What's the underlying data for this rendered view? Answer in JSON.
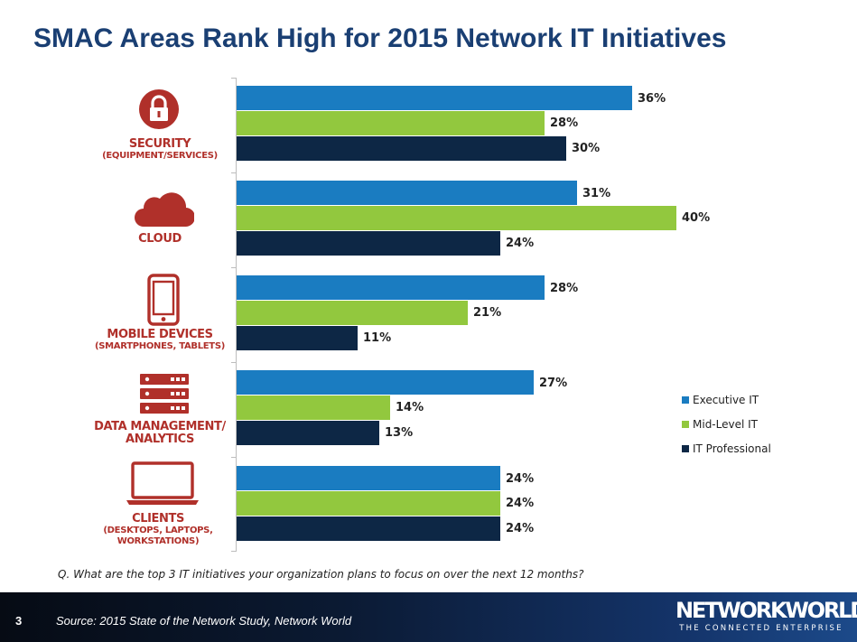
{
  "title": "SMAC Areas Rank High for 2015 Network IT Initiatives",
  "question": "Q. What are the top 3 IT initiatives your organization plans to focus on over the next 12 months?",
  "footer": {
    "page_number": "3",
    "source": "Source: 2015 State of the Network Study, Network World",
    "logo_main": "NETWORKWORLD",
    "logo_sub": "THE CONNECTED ENTERPRISE"
  },
  "colors": {
    "executive": "#1a7cc1",
    "midlevel": "#92c83e",
    "professional": "#0d2745",
    "icon": "#b0302a"
  },
  "chart_data": {
    "type": "bar",
    "orientation": "horizontal",
    "title": "SMAC Areas Rank High for 2015 Network IT Initiatives",
    "xlabel": "",
    "ylabel": "",
    "xlim": [
      0,
      40
    ],
    "grid": false,
    "legend_position": "right",
    "categories": [
      {
        "name": "SECURITY",
        "sub": "(EQUIPMENT/SERVICES)",
        "icon": "lock-icon"
      },
      {
        "name": "CLOUD",
        "sub": "",
        "icon": "cloud-icon"
      },
      {
        "name": "MOBILE DEVICES",
        "sub": "(SMARTPHONES, TABLETS)",
        "icon": "smartphone-icon"
      },
      {
        "name": "DATA MANAGEMENT/",
        "sub": "ANALYTICS",
        "icon": "server-icon"
      },
      {
        "name": "CLIENTS",
        "sub": "(DESKTOPS, LAPTOPS, WORKSTATIONS)",
        "icon": "laptop-icon"
      }
    ],
    "series": [
      {
        "name": "Executive IT",
        "values": [
          36,
          31,
          28,
          27,
          24
        ],
        "labels": [
          "36%",
          "31%",
          "28%",
          "27%",
          "24%"
        ]
      },
      {
        "name": "Mid-Level IT",
        "values": [
          28,
          40,
          21,
          14,
          24
        ],
        "labels": [
          "28%",
          "40%",
          "21%",
          "14%",
          "24%"
        ]
      },
      {
        "name": "IT Professional",
        "values": [
          30,
          24,
          11,
          13,
          24
        ],
        "labels": [
          "30%",
          "24%",
          "11%",
          "13%",
          "24%"
        ]
      }
    ]
  }
}
